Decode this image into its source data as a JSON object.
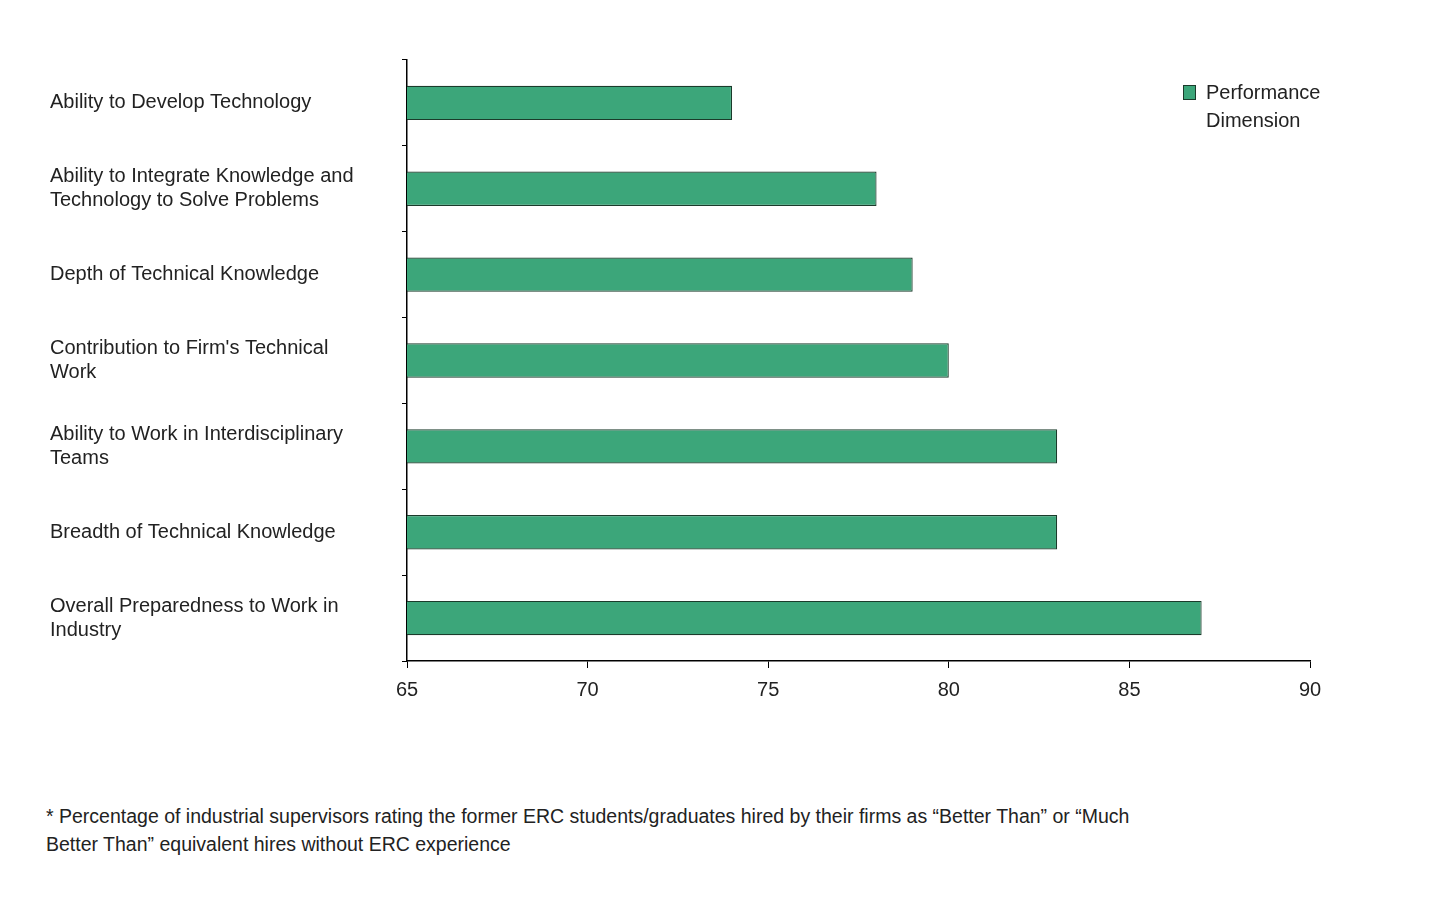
{
  "chart_data": {
    "type": "bar",
    "orientation": "horizontal",
    "categories": [
      "Ability to Develop Technology",
      "Ability to Integrate Knowledge and Technology to Solve Problems",
      "Depth of Technical Knowledge",
      "Contribution to Firm's Technical Work",
      "Ability to Work in Interdisciplinary Teams",
      "Breadth of Technical Knowledge",
      "Overall Preparedness to Work in Industry"
    ],
    "series": [
      {
        "name": "Performance Dimension",
        "color": "#3ca67a",
        "values": [
          74,
          78,
          79,
          80,
          83,
          83,
          87
        ]
      }
    ],
    "xlim": [
      65,
      90
    ],
    "xticks": [
      65,
      70,
      75,
      80,
      85,
      90
    ],
    "grid": false,
    "legend": "top-right",
    "annotations": [
      "* Percentage of industrial supervisors rating the former ERC students/graduates hired by their firms as “Better Than” or “Much Better Than” equivalent hires without ERC experience"
    ]
  }
}
